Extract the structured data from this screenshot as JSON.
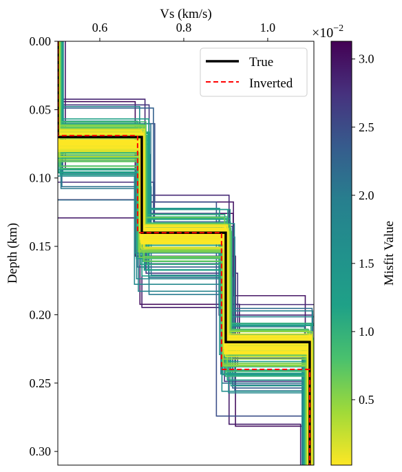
{
  "chart_data": {
    "type": "line",
    "xlabel": "Vs (km/s)",
    "ylabel": "Depth (km)",
    "xlim": [
      0.5,
      1.11
    ],
    "ylim": [
      0.31,
      0.0
    ],
    "y_inverted": true,
    "x_axis_position": "top",
    "grid": false,
    "x_ticks": [
      0.6,
      0.8,
      1.0
    ],
    "x_tick_labels": [
      "0.6",
      "0.8",
      "1.0"
    ],
    "y_ticks": [
      0.0,
      0.05,
      0.1,
      0.15,
      0.2,
      0.25,
      0.3
    ],
    "y_tick_labels": [
      "0.00",
      "0.05",
      "0.10",
      "0.15",
      "0.20",
      "0.25",
      "0.30"
    ],
    "legend": {
      "placement": "top-right",
      "entries": [
        {
          "label": "True",
          "color": "#000000",
          "style": "solid"
        },
        {
          "label": "Inverted",
          "color": "#ff0000",
          "style": "dashed"
        }
      ]
    },
    "series": [
      {
        "name": "True",
        "color": "#000000",
        "layers": [
          {
            "vs": 0.5,
            "top": 0.0,
            "bottom": 0.07
          },
          {
            "vs": 0.7,
            "top": 0.07,
            "bottom": 0.14
          },
          {
            "vs": 0.9,
            "top": 0.14,
            "bottom": 0.22
          },
          {
            "vs": 1.1,
            "top": 0.22,
            "bottom": 0.31
          }
        ]
      },
      {
        "name": "Inverted",
        "color": "#ff0000",
        "layers": [
          {
            "vs": 0.5,
            "top": 0.0,
            "bottom": 0.069
          },
          {
            "vs": 0.69,
            "top": 0.069,
            "bottom": 0.14
          },
          {
            "vs": 0.89,
            "top": 0.14,
            "bottom": 0.24
          },
          {
            "vs": 1.1,
            "top": 0.24,
            "bottom": 0.31
          }
        ]
      }
    ],
    "candidate_ensemble": {
      "colormap": "viridis_r",
      "misfit_range": [
        0.0002,
        0.0313
      ],
      "base_model": [
        {
          "vs": 0.5,
          "bottom": 0.07
        },
        {
          "vs": 0.7,
          "bottom": 0.14
        },
        {
          "vs": 0.9,
          "bottom": 0.22
        },
        {
          "vs": 1.1,
          "bottom": 0.31
        }
      ]
    },
    "colorbar": {
      "label": "Misfit Value",
      "multiplier": "×10",
      "multiplier_exponent": "−2",
      "ticks": [
        0.5,
        1.0,
        1.5,
        2.0,
        2.5,
        3.0
      ],
      "tick_labels": [
        "0.5",
        "1.0",
        "1.5",
        "2.0",
        "2.5",
        "3.0"
      ],
      "range": [
        0.02,
        3.13
      ]
    }
  }
}
